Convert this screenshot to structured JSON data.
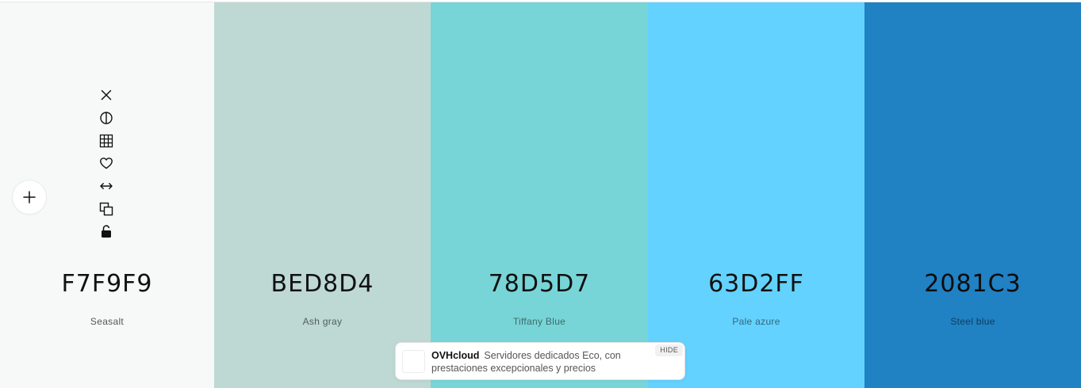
{
  "palette": {
    "colors": [
      {
        "hex": "F7F9F9",
        "name": "Seasalt",
        "bg": "#F7F9F9",
        "text_color": "#111111",
        "name_color": "#555555",
        "width_key": "w1"
      },
      {
        "hex": "BED8D4",
        "name": "Ash gray",
        "bg": "#BED8D4",
        "text_color": "#111111",
        "name_color": "#4f5f5c",
        "width_key": "w2"
      },
      {
        "hex": "78D5D7",
        "name": "Tiffany Blue",
        "bg": "#78D5D7",
        "text_color": "#111111",
        "name_color": "#3b6a6b",
        "width_key": "w3"
      },
      {
        "hex": "63D2FF",
        "name": "Pale azure",
        "bg": "#63D2FF",
        "text_color": "#111111",
        "name_color": "#33677d",
        "width_key": "w4"
      },
      {
        "hex": "2081C3",
        "name": "Steel blue",
        "bg": "#2081C3",
        "text_color": "#0c0c0c",
        "name_color": "#0f3d5e",
        "width_key": "w5"
      }
    ]
  },
  "toolbar": {
    "icons": [
      "close-icon",
      "contrast-icon",
      "grid-icon",
      "heart-icon",
      "arrows-horizontal-icon",
      "copy-icon",
      "lock-icon"
    ]
  },
  "add_button": {
    "icon": "plus-icon"
  },
  "ad": {
    "brand": "OVHcloud",
    "text": "Servidores dedicados Eco, con prestaciones excepcionales y precios",
    "hide_label": "HIDE"
  }
}
